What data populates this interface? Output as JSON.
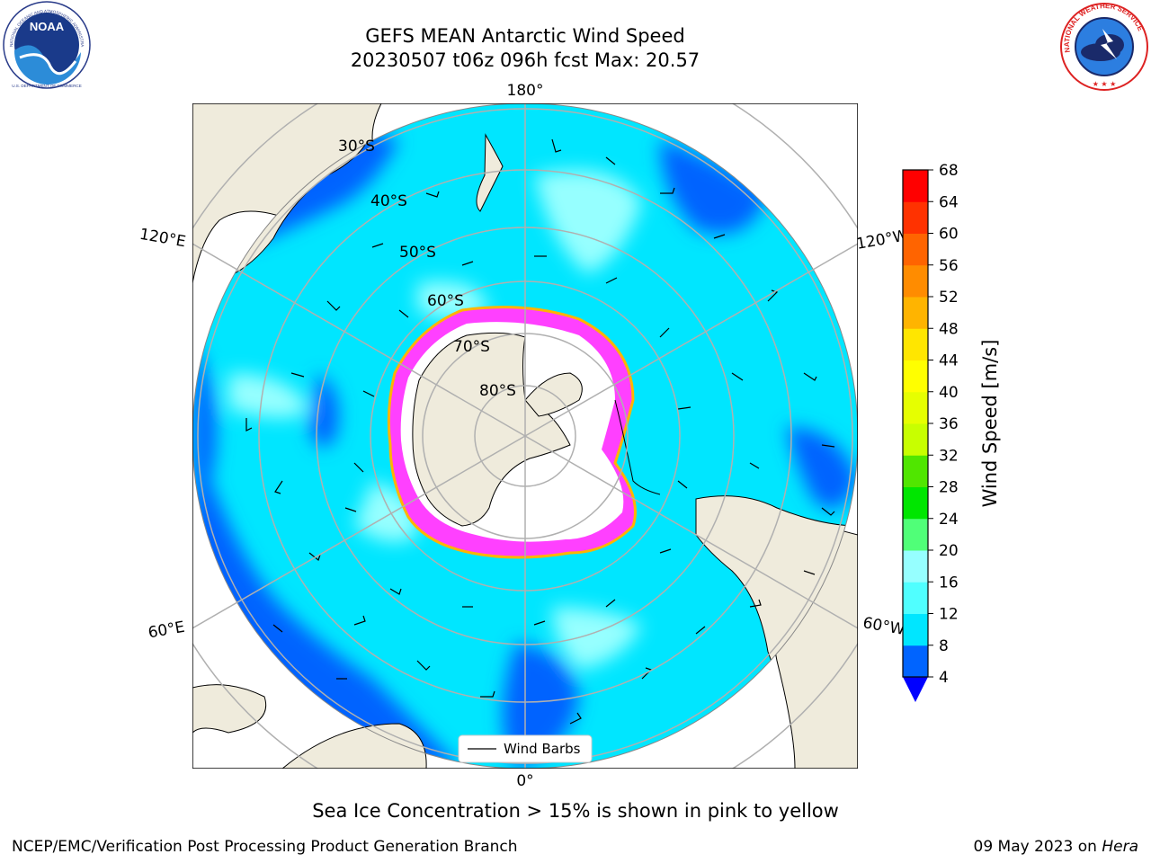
{
  "title": {
    "line1": "GEFS MEAN Antarctic Wind Speed",
    "line2": "20230507 t06z 096h fcst   Max: 20.57"
  },
  "logos": {
    "noaa_text": "NOAA",
    "noaa_ring": "NATIONAL OCEANIC AND ATMOSPHERIC ADMINISTRATION",
    "noaa_bottom": "U.S. DEPARTMENT OF COMMERCE",
    "nws_ring": "NATIONAL WEATHER SERVICE"
  },
  "map": {
    "lat_labels": [
      "30°S",
      "40°S",
      "50°S",
      "60°S",
      "70°S",
      "80°S"
    ],
    "lon_labels": {
      "top": "180°",
      "bottom": "0°",
      "upper_left": "120°E",
      "upper_right": "120°W",
      "lower_left": "60°E",
      "lower_right": "60°W"
    },
    "legend_label": "Wind Barbs",
    "colors": {
      "ocean_low": "#0064ff",
      "ocean_mid": "#00e6ff",
      "ocean_high": "#96ffff",
      "land": "#efebdc",
      "ice": "#ff40ff",
      "grid": "#b0b0b0"
    }
  },
  "colorbar": {
    "label": "Wind Speed [m/s]",
    "ticks": [
      "4",
      "8",
      "12",
      "16",
      "20",
      "24",
      "28",
      "32",
      "36",
      "40",
      "44",
      "48",
      "52",
      "56",
      "60",
      "64",
      "68"
    ],
    "colors": [
      "#0064ff",
      "#00e6ff",
      "#50ffff",
      "#96ffff",
      "#50ff78",
      "#00e600",
      "#50e600",
      "#c8ff00",
      "#e6ff00",
      "#ffff00",
      "#ffe600",
      "#ffb400",
      "#ff8c00",
      "#ff6400",
      "#ff3200",
      "#ff0000"
    ],
    "under_color": "#0000ff"
  },
  "captions": {
    "ice": "Sea Ice Concentration > 15% is shown in pink to yellow",
    "footer_left": "NCEP/EMC/Verification Post Processing Product Generation Branch",
    "footer_date": "09 May 2023 on",
    "footer_machine": "Hera"
  }
}
